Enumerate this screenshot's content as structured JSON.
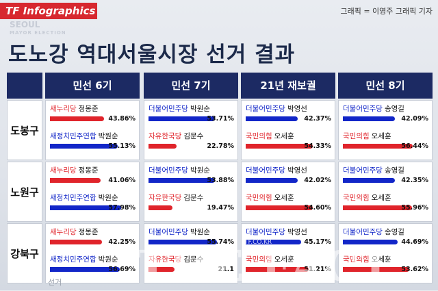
{
  "badge": "TF Infographics",
  "credit": "그래픽 = 이영주 그래픽 기자",
  "background_text": {
    "main": "SEOUL",
    "sub": "MAYOR ELECTION",
    "bottom": "선거"
  },
  "title": "도노강 역대서울시장 선거 결과",
  "watermark": "THE FACT",
  "watermark_small": "TF.CO.KR",
  "colors": {
    "red": "#e0242b",
    "blue": "#1226c8",
    "header": "#1c2a63"
  },
  "chart_data": {
    "type": "bar",
    "title": "도노강 역대서울시장 선거 결과",
    "columns": [
      "민선 6기",
      "민선 7기",
      "21년 재보궐",
      "민선 8기"
    ],
    "rows": [
      "도봉구",
      "노원구",
      "강북구"
    ],
    "cells": [
      [
        [
          {
            "party": "새누리당",
            "name": "정몽준",
            "color": "red",
            "value": 43.86,
            "label": "43.86%"
          },
          {
            "party": "새정치민주연합",
            "name": "박원순",
            "color": "blue",
            "value": 55.13,
            "label": "55.13%"
          }
        ],
        [
          {
            "party": "더불어민주당",
            "name": "박원순",
            "color": "blue",
            "value": 53.71,
            "label": "53.71%"
          },
          {
            "party": "자유한국당",
            "name": "김문수",
            "color": "red",
            "value": 22.78,
            "label": "22.78%"
          }
        ],
        [
          {
            "party": "더불어민주당",
            "name": "박영선",
            "color": "blue",
            "value": 42.37,
            "label": "42.37%"
          },
          {
            "party": "국민의힘",
            "name": "오세훈",
            "color": "red",
            "value": 54.33,
            "label": "54.33%"
          }
        ],
        [
          {
            "party": "더불어민주당",
            "name": "송영길",
            "color": "blue",
            "value": 42.09,
            "label": "42.09%"
          },
          {
            "party": "국민의힘",
            "name": "오세훈",
            "color": "red",
            "value": 56.44,
            "label": "56.44%"
          }
        ]
      ],
      [
        [
          {
            "party": "새누리당",
            "name": "정몽준",
            "color": "red",
            "value": 41.06,
            "label": "41.06%"
          },
          {
            "party": "새정치민주연합",
            "name": "박원순",
            "color": "blue",
            "value": 57.98,
            "label": "57.98%"
          }
        ],
        [
          {
            "party": "더불어민주당",
            "name": "박원순",
            "color": "blue",
            "value": 53.88,
            "label": "53.88%"
          },
          {
            "party": "자유한국당",
            "name": "김문수",
            "color": "red",
            "value": 19.47,
            "label": "19.47%"
          }
        ],
        [
          {
            "party": "더불어민주당",
            "name": "박영선",
            "color": "blue",
            "value": 42.02,
            "label": "42.02%"
          },
          {
            "party": "국민의힘",
            "name": "오세훈",
            "color": "red",
            "value": 54.6,
            "label": "54.60%"
          }
        ],
        [
          {
            "party": "더불어민주당",
            "name": "송영길",
            "color": "blue",
            "value": 42.35,
            "label": "42.35%"
          },
          {
            "party": "국민의힘",
            "name": "오세훈",
            "color": "red",
            "value": 55.96,
            "label": "55.96%"
          }
        ]
      ],
      [
        [
          {
            "party": "새누리당",
            "name": "정몽준",
            "color": "red",
            "value": 42.25,
            "label": "42.25%"
          },
          {
            "party": "새정치민주연합",
            "name": "박원순",
            "color": "blue",
            "value": 56.69,
            "label": "56.69%"
          }
        ],
        [
          {
            "party": "더불어민주당",
            "name": "박원순",
            "color": "blue",
            "value": 55.74,
            "label": "55.74%"
          },
          {
            "party": "자유한국당",
            "name": "김문수",
            "color": "red",
            "value": 21.1,
            "label": "21.1"
          }
        ],
        [
          {
            "party": "더불어민주당",
            "name": "박영선",
            "color": "blue",
            "value": 45.17,
            "label": "45.17%"
          },
          {
            "party": "국민의힘",
            "name": "오세훈",
            "color": "red",
            "value": 51.21,
            "label": "51.21%"
          }
        ],
        [
          {
            "party": "더불어민주당",
            "name": "송영길",
            "color": "blue",
            "value": 44.69,
            "label": "44.69%"
          },
          {
            "party": "국민의힘",
            "name": "오세훈",
            "color": "red",
            "value": 53.62,
            "label": "53.62%"
          }
        ]
      ]
    ],
    "xlim": [
      0,
      60
    ]
  }
}
